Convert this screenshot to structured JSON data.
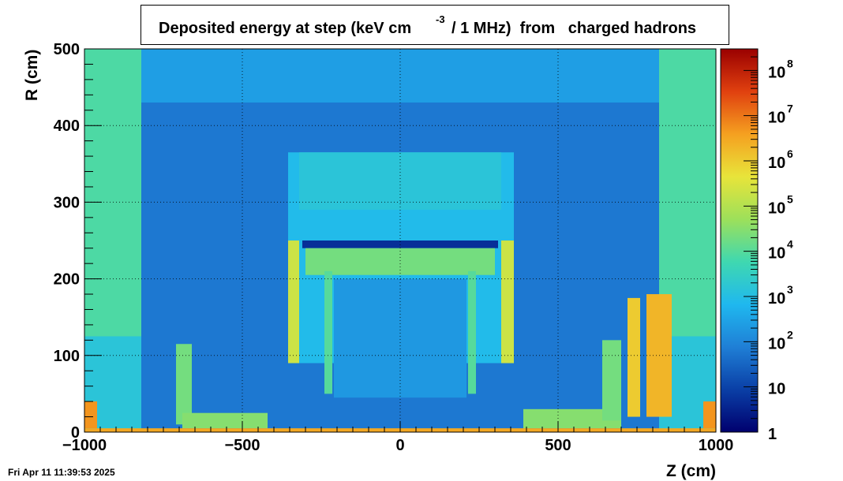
{
  "title": {
    "main": "Deposited energy at step (keV cm",
    "exponent": "-3",
    "tail": "/ 1 MHz)  from   charged hadrons"
  },
  "timestamp": "Fri Apr 11 11:39:53 2025",
  "chart_data": {
    "type": "heatmap",
    "xlabel": "Z (cm)",
    "ylabel": "R (cm)",
    "xlim": [
      -1000,
      1000
    ],
    "ylim": [
      0,
      500
    ],
    "x_ticks": [
      {
        "v": -1000,
        "label": "−1000"
      },
      {
        "v": -500,
        "label": "−500"
      },
      {
        "v": 0,
        "label": "0"
      },
      {
        "v": 500,
        "label": "500"
      },
      {
        "v": 1000,
        "label": "1000"
      }
    ],
    "y_ticks": [
      {
        "v": 0,
        "label": "0"
      },
      {
        "v": 100,
        "label": "100"
      },
      {
        "v": 200,
        "label": "200"
      },
      {
        "v": 300,
        "label": "300"
      },
      {
        "v": 400,
        "label": "400"
      },
      {
        "v": 500,
        "label": "500"
      }
    ],
    "colorbar": {
      "scale": "log",
      "range": [
        1,
        300000000
      ],
      "ticks": [
        {
          "v": 1,
          "base": "1",
          "exp": ""
        },
        {
          "v": 10,
          "base": "10",
          "exp": ""
        },
        {
          "v": 100,
          "base": "10",
          "exp": "2"
        },
        {
          "v": 1000,
          "base": "10",
          "exp": "3"
        },
        {
          "v": 10000,
          "base": "10",
          "exp": "4"
        },
        {
          "v": 100000,
          "base": "10",
          "exp": "5"
        },
        {
          "v": 1000000,
          "base": "10",
          "exp": "6"
        },
        {
          "v": 10000000,
          "base": "10",
          "exp": "7"
        },
        {
          "v": 100000000,
          "base": "10",
          "exp": "8"
        }
      ],
      "colors": [
        "#00006e",
        "#0a3fa6",
        "#1f7fd6",
        "#1fb8ef",
        "#3fd8b0",
        "#9de05a",
        "#e8e43a",
        "#f5a020",
        "#e0400f",
        "#9a0000"
      ]
    },
    "grid": true,
    "regions": [
      {
        "z": [
          -1000,
          1000
        ],
        "r": [
          0,
          500
        ],
        "value": 60
      },
      {
        "z": [
          -1000,
          1000
        ],
        "r": [
          430,
          500
        ],
        "value": 250
      },
      {
        "z": [
          -1000,
          -820
        ],
        "r": [
          125,
          500
        ],
        "value": 8000
      },
      {
        "z": [
          -1000,
          -820
        ],
        "r": [
          0,
          125
        ],
        "value": 1500
      },
      {
        "z": [
          820,
          1000
        ],
        "r": [
          125,
          500
        ],
        "value": 8000
      },
      {
        "z": [
          820,
          1000
        ],
        "r": [
          0,
          125
        ],
        "value": 1500
      },
      {
        "z": [
          -355,
          360
        ],
        "r": [
          90,
          365
        ],
        "value": 800
      },
      {
        "z": [
          -320,
          320
        ],
        "r": [
          290,
          365
        ],
        "value": 1500
      },
      {
        "z": [
          -310,
          310
        ],
        "r": [
          240,
          250
        ],
        "value": 5
      },
      {
        "z": [
          -300,
          300
        ],
        "r": [
          205,
          240
        ],
        "value": 20000
      },
      {
        "z": [
          -210,
          210
        ],
        "r": [
          45,
          200
        ],
        "value": 200
      },
      {
        "z": [
          -355,
          -320
        ],
        "r": [
          90,
          250
        ],
        "value": 200000
      },
      {
        "z": [
          320,
          360
        ],
        "r": [
          90,
          250
        ],
        "value": 200000
      },
      {
        "z": [
          -240,
          -215
        ],
        "r": [
          50,
          210
        ],
        "value": 10000
      },
      {
        "z": [
          215,
          240
        ],
        "r": [
          50,
          210
        ],
        "value": 10000
      },
      {
        "z": [
          -710,
          -660
        ],
        "r": [
          10,
          115
        ],
        "value": 20000
      },
      {
        "z": [
          -690,
          -420
        ],
        "r": [
          5,
          25
        ],
        "value": 30000
      },
      {
        "z": [
          390,
          700
        ],
        "r": [
          5,
          30
        ],
        "value": 30000
      },
      {
        "z": [
          640,
          700
        ],
        "r": [
          15,
          120
        ],
        "value": 20000
      },
      {
        "z": [
          720,
          760
        ],
        "r": [
          20,
          175
        ],
        "value": 1000000
      },
      {
        "z": [
          780,
          860
        ],
        "r": [
          20,
          180
        ],
        "value": 2000000
      },
      {
        "z": [
          -1000,
          -960
        ],
        "r": [
          5,
          40
        ],
        "value": 5000000
      },
      {
        "z": [
          960,
          1000
        ],
        "r": [
          5,
          40
        ],
        "value": 5000000
      },
      {
        "z": [
          -1000,
          1000
        ],
        "r": [
          0,
          5
        ],
        "value": 3000000
      }
    ]
  }
}
